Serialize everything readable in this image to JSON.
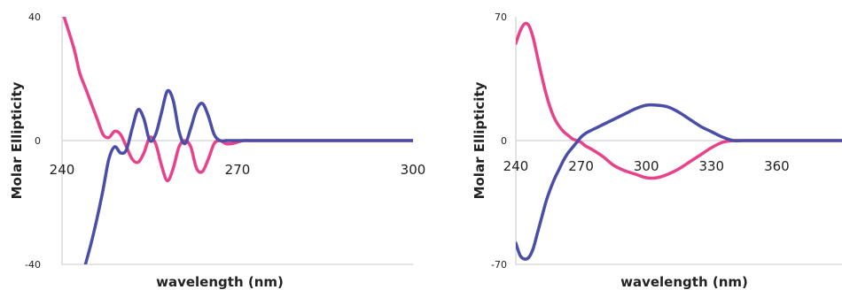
{
  "chart_data": [
    {
      "type": "line",
      "xlabel": "wavelength (nm)",
      "ylabel": "Molar Ellipticity",
      "xlim": [
        240,
        300
      ],
      "ylim": [
        -40,
        40
      ],
      "xticks": [
        240,
        270,
        300
      ],
      "yticks": [
        40,
        0,
        -40
      ],
      "grid": false,
      "series": [
        {
          "color": "#e8428a",
          "x": [
            240,
            242,
            243,
            244,
            245,
            246,
            247,
            248,
            249,
            250,
            251,
            252,
            253,
            254,
            255,
            256,
            257,
            258,
            259,
            260,
            261,
            262,
            263,
            264,
            265,
            266,
            267,
            268,
            269,
            270,
            271,
            272,
            273,
            274,
            275,
            276,
            278,
            280,
            285,
            290,
            295,
            300
          ],
          "y": [
            42,
            30,
            22,
            17,
            12,
            7,
            2,
            1,
            3,
            2,
            -2,
            -6,
            -7,
            -4,
            1,
            -1,
            -8,
            -13,
            -9,
            -2,
            0,
            -2,
            -9,
            -10,
            -6,
            -1,
            0,
            -1,
            -1,
            -0.5,
            0,
            0,
            0,
            0,
            0,
            0,
            0,
            0,
            0,
            0,
            0,
            0
          ]
        },
        {
          "color": "#4a4ea8",
          "x": [
            244,
            245,
            246,
            247,
            248,
            249,
            250,
            251,
            252,
            253,
            254,
            255,
            256,
            257,
            258,
            259,
            260,
            261,
            262,
            263,
            264,
            265,
            266,
            267,
            268,
            269,
            270,
            271,
            272,
            273,
            274,
            275,
            276,
            278,
            280,
            285,
            290,
            295,
            300
          ],
          "y": [
            -40,
            -33,
            -25,
            -16,
            -6,
            -2,
            -4,
            -3,
            4,
            10,
            7,
            0,
            2,
            9,
            16,
            13,
            3,
            -1,
            4,
            10,
            12,
            8,
            2,
            0,
            0,
            0,
            0,
            0,
            0,
            0,
            0,
            0,
            0,
            0,
            0,
            0,
            0,
            0,
            0
          ]
        }
      ]
    },
    {
      "type": "line",
      "xlabel": "wavelength (nm)",
      "ylabel": "Molar Ellipticity",
      "xlim": [
        240,
        390
      ],
      "ylim": [
        -70,
        70
      ],
      "xticks": [
        240,
        270,
        300,
        330,
        360
      ],
      "yticks": [
        70,
        0,
        -70
      ],
      "grid": false,
      "series": [
        {
          "color": "#e8428a",
          "x": [
            240,
            242,
            244,
            246,
            248,
            250,
            252,
            254,
            256,
            258,
            260,
            262,
            264,
            266,
            268,
            270,
            272,
            275,
            280,
            285,
            290,
            295,
            300,
            305,
            310,
            315,
            320,
            325,
            330,
            335,
            340,
            345,
            350,
            360,
            370,
            380,
            390
          ],
          "y": [
            55,
            62,
            66,
            65,
            58,
            47,
            36,
            26,
            18,
            12,
            8,
            5,
            3,
            1,
            0,
            -1,
            -3,
            -5,
            -9,
            -14,
            -17,
            -19,
            -21,
            -21,
            -19,
            -16,
            -12,
            -8,
            -4,
            -1,
            0,
            0,
            0,
            0,
            0,
            0,
            0
          ]
        },
        {
          "color": "#4a4ea8",
          "x": [
            240,
            242,
            244,
            246,
            248,
            250,
            252,
            254,
            256,
            258,
            260,
            262,
            264,
            266,
            268,
            270,
            272,
            275,
            280,
            285,
            290,
            295,
            300,
            305,
            310,
            315,
            320,
            325,
            330,
            335,
            340,
            345,
            350,
            360,
            370,
            380,
            390
          ],
          "y": [
            -58,
            -65,
            -67,
            -66,
            -61,
            -52,
            -43,
            -34,
            -27,
            -21,
            -16,
            -11,
            -7,
            -4,
            -1,
            2,
            4,
            6,
            9,
            12,
            15,
            18,
            20,
            20,
            19,
            16,
            12,
            8,
            5,
            2,
            0,
            0,
            0,
            0,
            0,
            0,
            0
          ]
        }
      ]
    }
  ]
}
